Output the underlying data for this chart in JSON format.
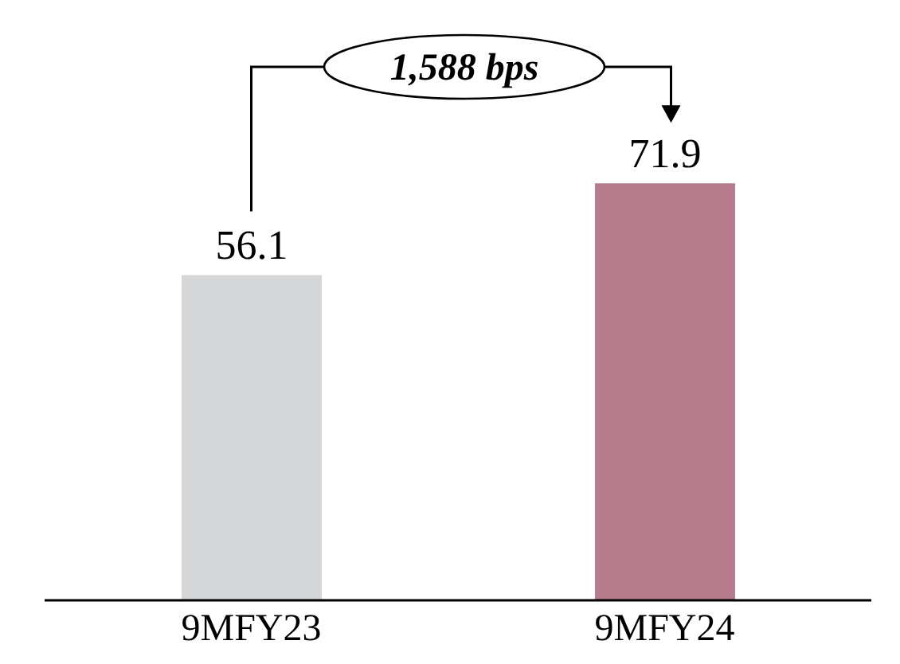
{
  "chart_data": {
    "type": "bar",
    "categories": [
      "9MFY23",
      "9MFY24"
    ],
    "values": [
      56.1,
      71.9
    ],
    "colors": [
      "#d5d6d8",
      "#b67b8d"
    ],
    "data_labels": true,
    "annotations": [
      "1,588 bps"
    ]
  }
}
